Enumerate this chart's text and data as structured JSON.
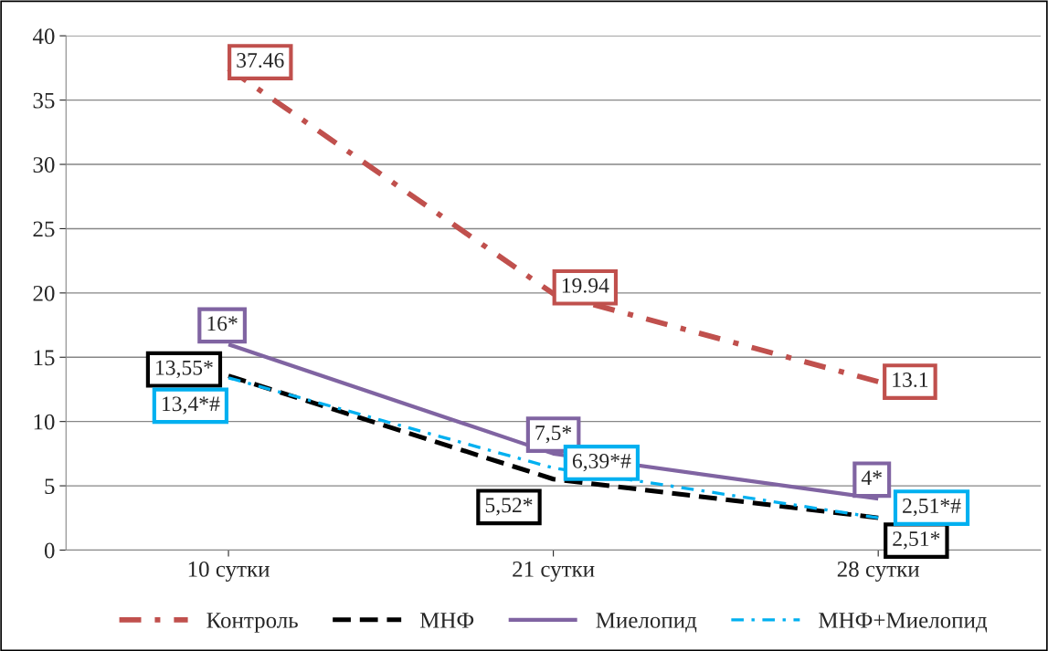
{
  "chart_data": {
    "type": "line",
    "categories": [
      "10 сутки",
      "21 сутки",
      "28 сутки"
    ],
    "series": [
      {
        "name": "Контроль",
        "color": "#c0504d",
        "line_style": "dashdot",
        "values": [
          37.46,
          19.94,
          13.1
        ],
        "value_labels": [
          "37.46",
          "19.94",
          "13.1"
        ]
      },
      {
        "name": "МНФ",
        "color": "#000000",
        "line_style": "dashed",
        "values": [
          13.55,
          5.52,
          2.51
        ],
        "value_labels": [
          "13,55*",
          "5,52*",
          "2,51*"
        ]
      },
      {
        "name": "Миелопид",
        "color": "#8064a2",
        "line_style": "solid",
        "values": [
          16,
          7.5,
          4
        ],
        "value_labels": [
          "16*",
          "7,5*",
          "4*"
        ]
      },
      {
        "name": "МНФ+Миелопид",
        "color": "#00b0f0",
        "line_style": "dashdot",
        "values": [
          13.4,
          6.39,
          2.51
        ],
        "value_labels": [
          "13,4*#",
          "6,39*#",
          "2,51*#"
        ]
      }
    ],
    "ylim": [
      0,
      40
    ],
    "yticks": [
      0,
      5,
      10,
      15,
      20,
      25,
      30,
      35,
      40
    ],
    "grid": "y",
    "legend": "bottom",
    "marker": "none"
  }
}
